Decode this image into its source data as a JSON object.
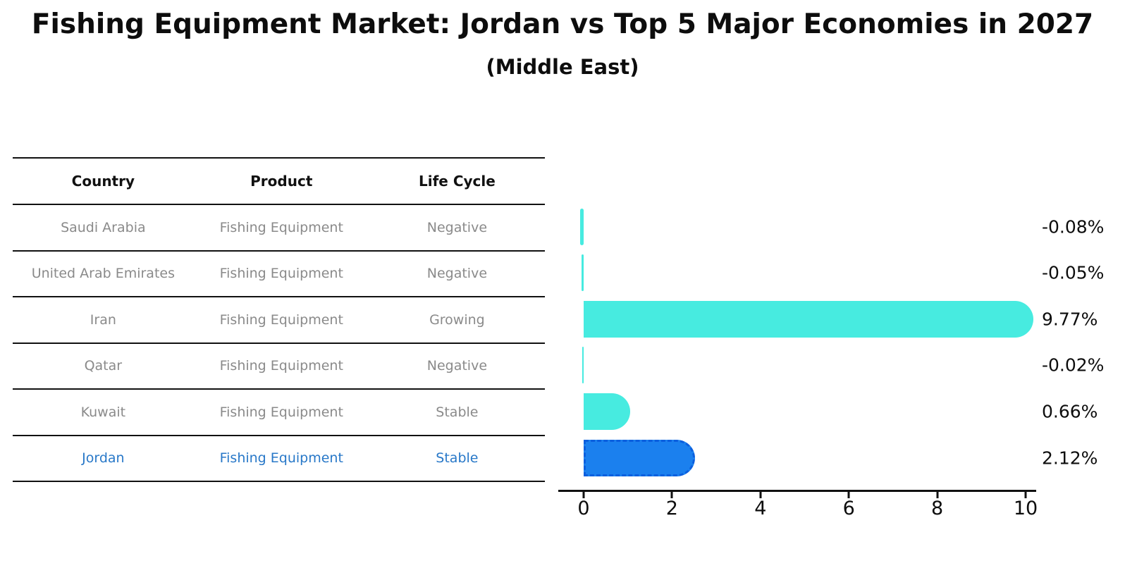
{
  "title": "Fishing Equipment Market: Jordan vs Top 5 Major Economies in 2027",
  "subtitle": "(Middle East)",
  "colors": {
    "bar_default": "#47ebe0",
    "bar_highlight": "#1b80ee",
    "highlight_text": "#2878c8",
    "table_text": "#8a8a8a",
    "axis": "#111111"
  },
  "table": {
    "headers": [
      "Country",
      "Product",
      "Life Cycle"
    ],
    "rows": [
      {
        "country": "Saudi Arabia",
        "product": "Fishing Equipment",
        "life_cycle": "Negative",
        "highlight": false
      },
      {
        "country": "United Arab Emirates",
        "product": "Fishing Equipment",
        "life_cycle": "Negative",
        "highlight": false
      },
      {
        "country": "Iran",
        "product": "Fishing Equipment",
        "life_cycle": "Growing",
        "highlight": false
      },
      {
        "country": "Qatar",
        "product": "Fishing Equipment",
        "life_cycle": "Negative",
        "highlight": false
      },
      {
        "country": "Kuwait",
        "product": "Fishing Equipment",
        "life_cycle": "Stable",
        "highlight": false
      },
      {
        "country": "Jordan",
        "product": "Fishing Equipment",
        "life_cycle": "Stable",
        "highlight": true
      }
    ]
  },
  "chart_data": {
    "type": "bar",
    "orientation": "horizontal",
    "title": "Fishing Equipment Market: Jordan vs Top 5 Major Economies in 2027 (Middle East)",
    "categories": [
      "Saudi Arabia",
      "United Arab Emirates",
      "Iran",
      "Qatar",
      "Kuwait",
      "Jordan"
    ],
    "values": [
      -0.08,
      -0.05,
      9.77,
      -0.02,
      0.66,
      2.12
    ],
    "value_labels": [
      "-0.08%",
      "-0.05%",
      "9.77%",
      "-0.02%",
      "0.66%",
      "2.12%"
    ],
    "highlight_category": "Jordan",
    "xlabel": "",
    "ylabel": "",
    "xticks": [
      0,
      2,
      4,
      6,
      8,
      10
    ],
    "xlim": [
      -0.6,
      10.3
    ],
    "grid": false,
    "legend": false
  }
}
